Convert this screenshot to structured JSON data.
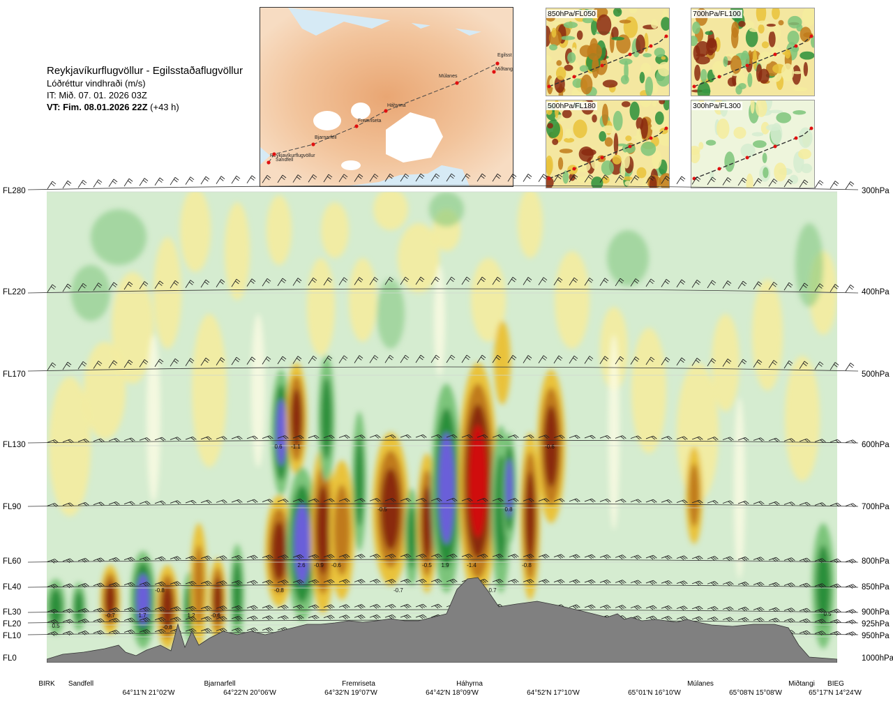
{
  "title": {
    "route": "Reykjavíkurflugvöllur - Egilsstaðaflugvöllur",
    "variable": "Lóðréttur vindhraði (m/s)",
    "it": "IT: Mið. 07. 01. 2026 03Z",
    "vt_bold": "VT: Fim. 08.01.2026 22Z",
    "vt_rest": " (+43 h)"
  },
  "levels": [
    {
      "fl": "FL280",
      "hpa": "300hPa"
    },
    {
      "fl": "FL220",
      "hpa": "400hPa"
    },
    {
      "fl": "FL170",
      "hpa": "500hPa"
    },
    {
      "fl": "FL130",
      "hpa": "600hPa"
    },
    {
      "fl": "FL90",
      "hpa": "700hPa"
    },
    {
      "fl": "FL60",
      "hpa": "800hPa"
    },
    {
      "fl": "FL40",
      "hpa": "850hPa"
    },
    {
      "fl": "FL30",
      "hpa": "900hPa"
    },
    {
      "fl": "FL20",
      "hpa": "925hPa"
    },
    {
      "fl": "FL10",
      "hpa": "950hPa"
    },
    {
      "fl": "FL0",
      "hpa": "1000hPa"
    }
  ],
  "waypoints": [
    "BIRK",
    "Sandfell",
    "Bjarnarfell",
    "Fremriseta",
    "Háhyrna",
    "Múlanes",
    "Miðtangi",
    "BIEG"
  ],
  "coords": [
    "64°11'N 21°02'W",
    "64°22'N 20°06'W",
    "64°32'N 19°07'W",
    "64°42'N 18°09'W",
    "64°52'N 17°10'W",
    "65°01'N 16°10'W",
    "65°08'N 15°08'W",
    "65°17'N 14°24'W"
  ],
  "map": {
    "places": [
      "Reykjavíkurflugvöllur",
      "Sandfell",
      "Bjarnarfell",
      "Fremriseta",
      "Háhyrna",
      "Múlanes",
      "Egilsst",
      "Miðtangi"
    ]
  },
  "panels": [
    "850hPa/FL050",
    "700hPa/FL100",
    "500hPa/FL180",
    "300hPa/FL300"
  ],
  "value_labels": [
    "0.5",
    "-0.7",
    "1.7",
    "-0.8",
    "-0.8",
    "1.2",
    "-0.6",
    "-0.8",
    "2.6",
    "-0.9",
    "-0.6",
    "0.6",
    "-1.1",
    "-0.5",
    "-0.7",
    "-0.5",
    "1.9",
    "-1.4",
    "0.7",
    "0.8",
    "-0.8",
    "-0.6",
    "0.5"
  ],
  "colors": {
    "strong_up": "#6b5fd9",
    "up": "#2a8f3a",
    "weak_up": "#7cc47a",
    "faint_up": "#d5ecd0",
    "neutral": "#fbfbe4",
    "faint_down": "#f4ec9e",
    "weak_down": "#e9c23a",
    "down": "#c07a1a",
    "strong_down": "#8a2a10",
    "extreme_down": "#d01010",
    "terrain": "#808080"
  }
}
